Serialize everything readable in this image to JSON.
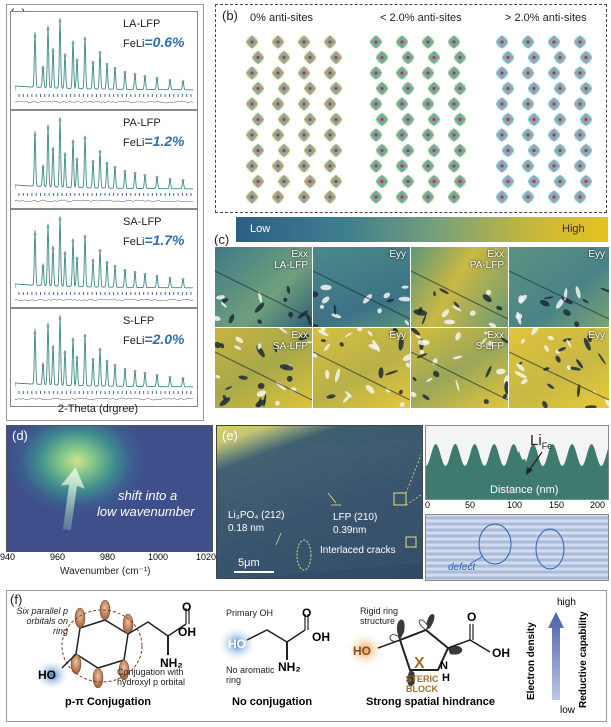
{
  "panel_a": {
    "label": "(a)",
    "samples": [
      {
        "name": "LA-LFP",
        "feli_prefix": "FeLi",
        "feli_value": "=0.6%"
      },
      {
        "name": "PA-LFP",
        "feli_prefix": "FeLi",
        "feli_value": "=1.2%"
      },
      {
        "name": "SA-LFP",
        "feli_prefix": "FeLi",
        "feli_value": "=1.7%"
      },
      {
        "name": "S-LFP",
        "feli_prefix": "FeLi",
        "feli_value": "=2.0%"
      }
    ],
    "xlabel": "2-Theta (drgree)"
  },
  "panel_b": {
    "label": "(b)",
    "titles": [
      "0% anti-sites",
      "< 2.0% anti-sites",
      "> 2.0% anti-sites"
    ]
  },
  "panel_c": {
    "label": "(c)",
    "colorbar_low": "Low",
    "colorbar_high": "High",
    "tiles": [
      {
        "text": "Exx\nLA-LFP"
      },
      {
        "text": "Eyy"
      },
      {
        "text": "Exx\nPA-LFP"
      },
      {
        "text": "Eyy"
      },
      {
        "text": "Exx\nSA-LFP"
      },
      {
        "text": "Eyy"
      },
      {
        "text": "Exx\nS-LFP"
      },
      {
        "text": "Eyy"
      }
    ]
  },
  "panel_d": {
    "label": "(d)",
    "annotation_line1": "shift into a",
    "annotation_line2": "low wavenumber",
    "xlabel": "Wavenumber (cm⁻¹)",
    "xticks": [
      "940",
      "960",
      "980",
      "1000",
      "1020"
    ]
  },
  "panel_e": {
    "label": "(e)",
    "lipo4": "Li₃PO₄ (212)",
    "lipo4_d": "0.18 nm",
    "lfp": "LFP (210)",
    "lfp_d": "0.39nm",
    "cracks": "Interlaced cracks",
    "scale": "5μm",
    "lifе_main": "Li",
    "life_sub": "Fe",
    "profile_xlabel": "Distance (nm)",
    "profile_ticks": [
      "0",
      "50",
      "100",
      "150",
      "200"
    ],
    "defect": "defect"
  },
  "panel_f": {
    "label": "(f)",
    "c1_note1": "Six parallel p orbitals on ring",
    "c1_note2": "Conjugation with hydroxyl p orbital",
    "c1_title": "p-π Conjugation",
    "c2_note1": "Primary OH",
    "c2_note2": "No aromatic ring",
    "c2_title": "No conjugation",
    "c3_note1": "Rigid ring structure",
    "c3_block": "STERIC BLOCK",
    "c3_title": "Strong spatial hindrance",
    "high": "high",
    "low": "low",
    "arrow_label1": "Electron density",
    "arrow_label2": "Reductive capability",
    "oh": "OH",
    "ho": "HO",
    "o": "O",
    "nh2": "NH₂",
    "nh": "N",
    "h": "H",
    "x": "X"
  },
  "colors": {
    "xrd_teal": "#3d8a86",
    "feli_blue": "#2f6eb0",
    "colorbar_start": "#2c5f86",
    "colorbar_end": "#e6c21e",
    "profile_fill": "#3f7a6e"
  }
}
